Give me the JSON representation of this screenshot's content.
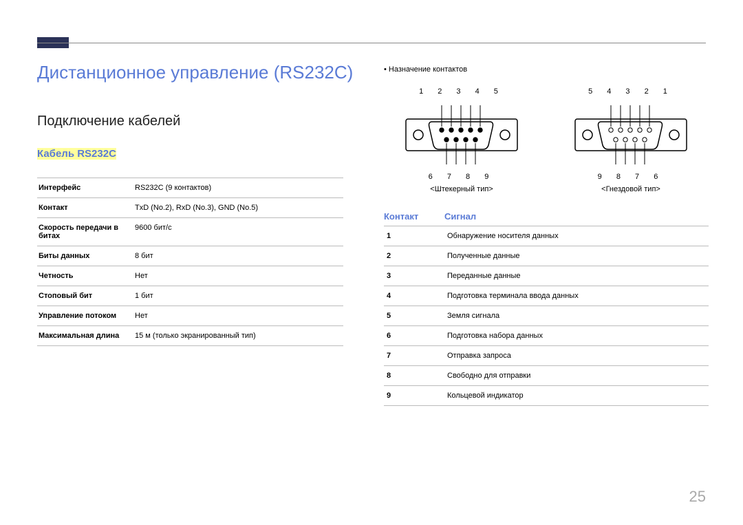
{
  "title": "Дистанционное управление (RS232C)",
  "subtitle": "Подключение кабелей",
  "section": "Кабель RS232C",
  "page_number": "25",
  "colors": {
    "title_color": "#5a7bd6",
    "highlight_bg": "#ffff9c",
    "topblock_bg": "#2b3258",
    "rule_color": "#bbbbbb",
    "pagenum_color": "#a9a9a9"
  },
  "spec_rows": [
    {
      "k": "Интерфейс",
      "v": "RS232C (9 контактов)"
    },
    {
      "k": "Контакт",
      "v": "TxD (No.2), RxD (No.3), GND (No.5)"
    },
    {
      "k": "Скорость передачи в битах",
      "v": "9600 бит/с"
    },
    {
      "k": "Биты данных",
      "v": "8 бит"
    },
    {
      "k": "Четность",
      "v": "Нет"
    },
    {
      "k": "Стоповый бит",
      "v": "1 бит"
    },
    {
      "k": "Управление потоком",
      "v": "Нет"
    },
    {
      "k": "Максимальная длина",
      "v": "15 м (только экранированный тип)"
    }
  ],
  "bullet": "Назначение контактов",
  "connectors": [
    {
      "top_nums": "1 2 3 4 5",
      "bot_nums": "6 7 8 9",
      "label": "<Штекерный тип>",
      "type": "male"
    },
    {
      "top_nums": "5 4 3 2 1",
      "bot_nums": "9 8 7 6",
      "label": "<Гнездовой тип>",
      "type": "female"
    }
  ],
  "signal_header": {
    "pin": "Контакт",
    "sig": "Сигнал"
  },
  "signal_rows": [
    {
      "pin": "1",
      "sig": "Обнаружение носителя данных"
    },
    {
      "pin": "2",
      "sig": "Полученные данные"
    },
    {
      "pin": "3",
      "sig": "Переданные данные"
    },
    {
      "pin": "4",
      "sig": "Подготовка терминала ввода данных"
    },
    {
      "pin": "5",
      "sig": "Земля сигнала"
    },
    {
      "pin": "6",
      "sig": "Подготовка набора данных"
    },
    {
      "pin": "7",
      "sig": "Отправка запроса"
    },
    {
      "pin": "8",
      "sig": "Свободно для отправки"
    },
    {
      "pin": "9",
      "sig": "Кольцевой индикатор"
    }
  ]
}
